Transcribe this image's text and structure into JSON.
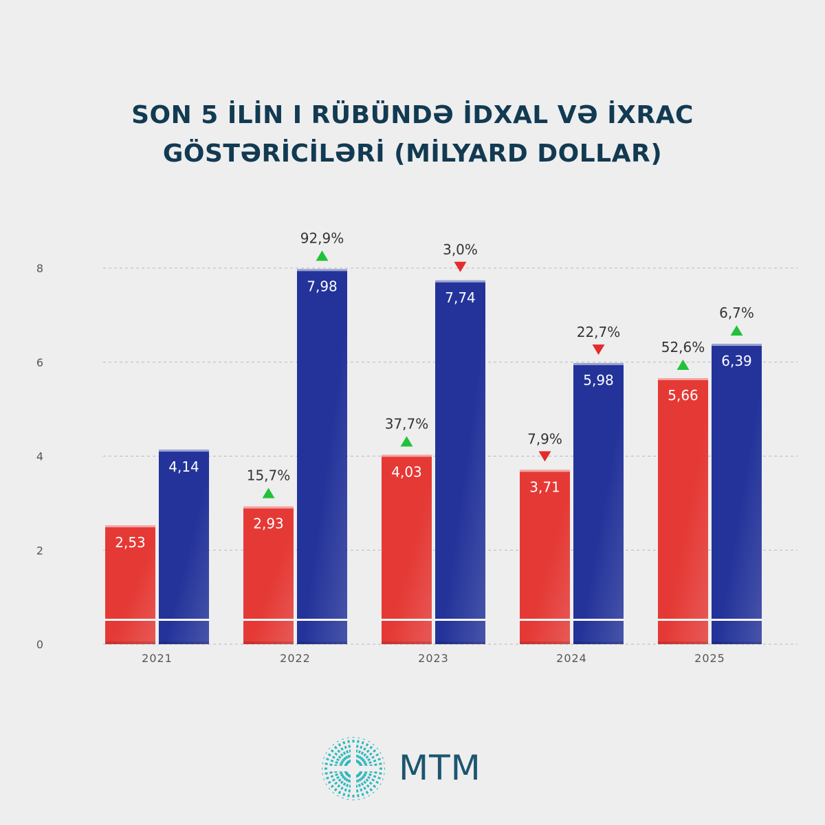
{
  "title": {
    "line1": "SON 5 İLİN I RÜBÜNDƏ İDXAL VƏ İXRAC",
    "line2": "GÖSTƏRİCİLƏRİ (MİLYARD DOLLAR)"
  },
  "chart_data": {
    "type": "bar",
    "categories": [
      "2021",
      "2022",
      "2023",
      "2024",
      "2025"
    ],
    "series": [
      {
        "color": "#e53935",
        "values": [
          2.53,
          2.93,
          4.03,
          3.71,
          5.66
        ],
        "labels": [
          "2,53",
          "2,93",
          "4,03",
          "3,71",
          "5,66"
        ],
        "changes": [
          null,
          "15,7%",
          "37,7%",
          "7,9%",
          "52,6%"
        ],
        "directions": [
          null,
          "up",
          "up",
          "down",
          "up"
        ]
      },
      {
        "color": "#23339a",
        "values": [
          4.14,
          7.98,
          7.74,
          5.98,
          6.39
        ],
        "labels": [
          "4,14",
          "7,98",
          "7,74",
          "5,98",
          "6,39"
        ],
        "changes": [
          null,
          "92,9%",
          "3,0%",
          "22,7%",
          "6,7%"
        ],
        "directions": [
          null,
          "up",
          "down",
          "down",
          "up"
        ]
      }
    ],
    "yticks": [
      "0",
      "2",
      "4",
      "6",
      "8"
    ],
    "ylim": [
      0,
      8
    ],
    "grid": true,
    "up_color": "#22c13a",
    "down_color": "#e52b2b"
  },
  "logo": {
    "text": "MTM",
    "icon": "radial-lines-icon",
    "icon_color": "#2fb8bd"
  }
}
